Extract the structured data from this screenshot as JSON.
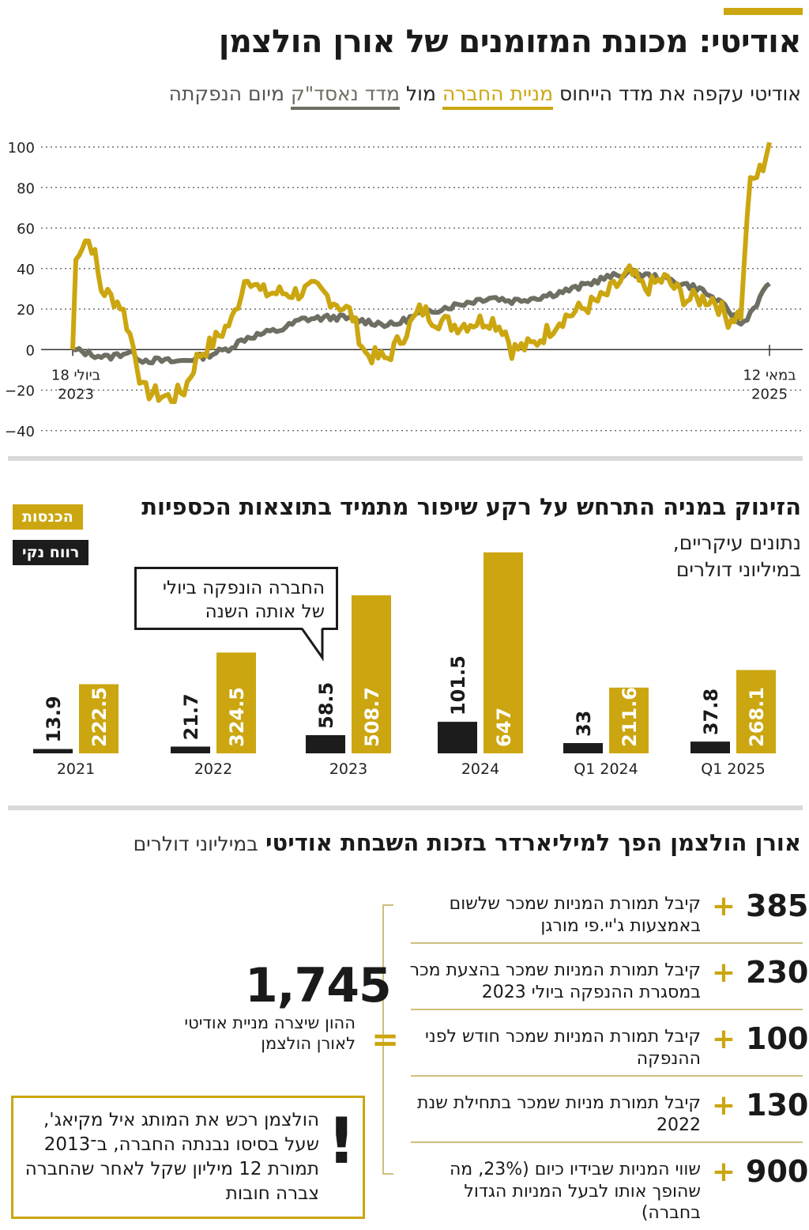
{
  "header": {
    "title": "אודיטי: מכונת המזומנים של אורן הולצמן",
    "subtitle_part1": "אודיטי עקפה את מדד הייחוס",
    "subtitle_gold": "מניית החברה",
    "subtitle_mid": "מול",
    "subtitle_gray": "מדד נאסד\"ק",
    "subtitle_end": "מיום הנפקתה"
  },
  "colors": {
    "gold": "#cba610",
    "gray": "#6e6e62",
    "black": "#1c1c1c"
  },
  "chart_data": [
    {
      "type": "line",
      "series": [
        {
          "name": "מניית החברה",
          "color": "#cba610"
        },
        {
          "name": "מדד נאסד\"ק",
          "color": "#6e6e62"
        }
      ],
      "y_ticks": [
        100,
        80,
        60,
        40,
        20,
        0,
        -20,
        -40
      ],
      "y_tick_labels": [
        "100",
        "80",
        "60",
        "40",
        "20",
        "0",
        "−20",
        "−40"
      ],
      "ylim": [
        -40,
        100
      ],
      "x_start_label": [
        "18 ביולי",
        "2023"
      ],
      "x_end_label": [
        "12 במאי",
        "2025"
      ],
      "grid": true
    },
    {
      "type": "bar",
      "title": "הזינוק במניה התרחש על רקע שיפור מתמיד בתוצאות הכספיות",
      "subtitle_line1": "נתונים עיקריים,",
      "subtitle_line2": "במיליוני דולרים",
      "categories": [
        "2021",
        "2022",
        "2023",
        "2024",
        "Q1 2024",
        "Q1 2025"
      ],
      "series": [
        {
          "name": "הכנסות",
          "color": "#cba610",
          "values": [
            222.5,
            324.5,
            508.7,
            647,
            211.6,
            268.1
          ],
          "labels": [
            "222.5",
            "324.5",
            "508.7",
            "647",
            "211.6",
            "268.1"
          ]
        },
        {
          "name": "רווח נקי",
          "color": "#1c1c1c",
          "values": [
            13.9,
            21.7,
            58.5,
            101.5,
            33,
            37.8
          ],
          "labels": [
            "13.9",
            "21.7",
            "58.5",
            "101.5",
            "33",
            "37.8"
          ]
        }
      ],
      "callout": [
        "החברה הונפקה ביולי",
        "של אותה השנה"
      ]
    }
  ],
  "section3": {
    "title_bold": "אורן הולצמן הפך למיליארדר בזכות השבחת אודיטי",
    "title_small": "במיליוני דולרים",
    "rows": [
      {
        "value": "385",
        "text": "קיבל תמורת המניות שמכר שלשום באמצעות ג'יי.פי מורגן"
      },
      {
        "value": "230",
        "text": "קיבל תמורת המניות שמכר בהצעת מכר במסגרת ההנפקה ביולי 2023"
      },
      {
        "value": "100",
        "text": "קיבל תמורת המניות שמכר חודש לפני ההנפקה"
      },
      {
        "value": "130",
        "text": "קיבל תמורת מניות שמכר בתחילת שנת 2022"
      },
      {
        "value": "900",
        "text": "שווי המניות שבידיו כיום (23%, מה שהופך אותו לבעל המניות הגדול בחברה)"
      }
    ],
    "plus": "+",
    "equals": "=",
    "total_value": "1,745",
    "total_label": "ההון שיצרה מניית אודיטי לאורן הולצמן",
    "note_mark": "!",
    "note": "הולצמן רכש את המותג איל מקיאג', שעל בסיסו נבנתה החברה, ב־2013 תמורת 12 מיליון שקל לאחר שהחברה צברה חובות"
  }
}
